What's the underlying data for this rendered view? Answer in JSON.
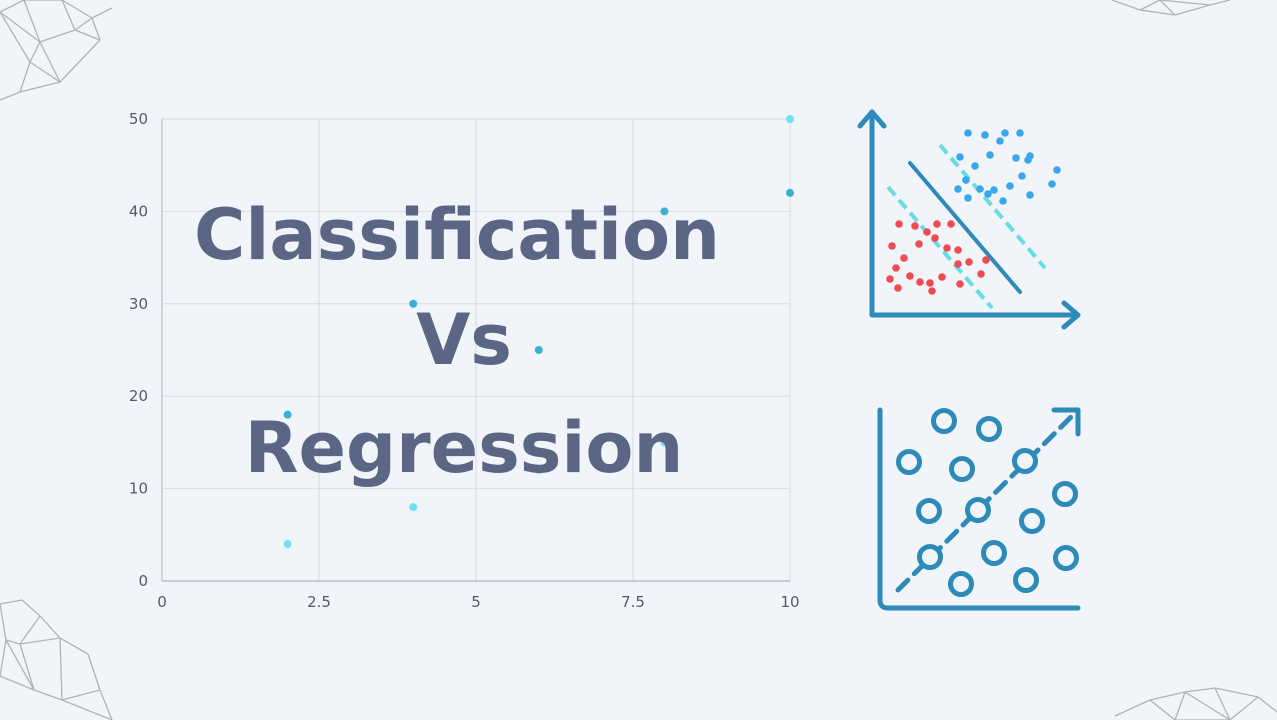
{
  "title_lines": [
    "Classification",
    "Vs",
    "Regression"
  ],
  "colors": {
    "background": "#f1f4f8",
    "title": "#5b6684",
    "point_dark": "#3bb0d2",
    "point_light": "#6ee3ef",
    "grid": "#d8dce2",
    "axis": "#b9bec7",
    "tick_text": "#555a66",
    "icon_blue": "#2e8ab9",
    "icon_cyan": "#66dde3",
    "icon_red": "#ee4b52",
    "icon_lightblue": "#3aa6ec",
    "decor_lines": "#b3b3b3"
  },
  "chart_data": {
    "type": "scatter",
    "xlim": [
      0,
      10
    ],
    "ylim": [
      0,
      50
    ],
    "x_ticks": [
      "0",
      "2.5",
      "5",
      "7.5",
      "10"
    ],
    "y_ticks": [
      "0",
      "10",
      "20",
      "30",
      "40",
      "50"
    ],
    "grid": true,
    "series": [
      {
        "points": [
          [
            2,
            18
          ],
          [
            4,
            30
          ],
          [
            6,
            25
          ],
          [
            8,
            40
          ],
          [
            10,
            42
          ]
        ]
      },
      {
        "points": [
          [
            2,
            4
          ],
          [
            4,
            8
          ],
          [
            6,
            12
          ],
          [
            8,
            15
          ],
          [
            10,
            50
          ]
        ]
      }
    ]
  },
  "icons": {
    "classification": "classification-scatter-icon",
    "regression": "regression-trend-icon"
  }
}
